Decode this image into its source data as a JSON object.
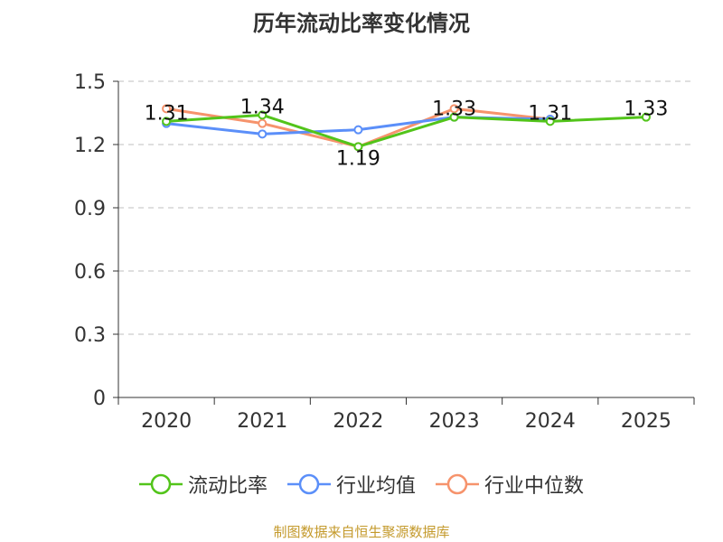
{
  "chart_data": {
    "type": "line",
    "title": "历年流动比率变化情况",
    "categories": [
      "2020",
      "2021",
      "2022",
      "2023",
      "2024",
      "2025"
    ],
    "ylim": [
      0,
      1.5
    ],
    "yticks": [
      "0",
      "0.3",
      "0.6",
      "0.9",
      "1.2",
      "1.5"
    ],
    "grid": true,
    "legend_position": "bottom",
    "series": [
      {
        "name": "流动比率",
        "color": "#52c41a",
        "values": [
          1.31,
          1.34,
          1.19,
          1.33,
          1.31,
          1.33
        ],
        "labels": [
          "1.31",
          "1.34",
          "1.19",
          "1.33",
          "1.31",
          "1.33"
        ]
      },
      {
        "name": "行业均值",
        "color": "#5b8ff9",
        "values": [
          1.3,
          1.25,
          1.27,
          1.33,
          1.32,
          null
        ]
      },
      {
        "name": "行业中位数",
        "color": "#f6936c",
        "values": [
          1.37,
          1.3,
          1.19,
          1.37,
          1.32,
          null
        ]
      }
    ]
  },
  "source_text": "制图数据来自恒生聚源数据库",
  "source_color": "#c49a2c"
}
